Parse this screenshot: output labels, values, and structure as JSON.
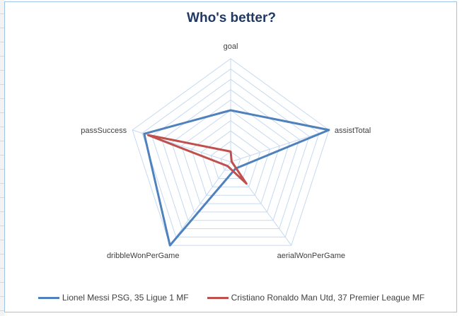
{
  "chart_data": {
    "type": "radar",
    "title": "Who's better?",
    "axes": [
      "goal",
      "assistTotal",
      "aerialWonPerGame",
      "dribbleWonPerGame",
      "passSuccess"
    ],
    "rmax": 10,
    "rings": 10,
    "series": [
      {
        "name": "Lionel Messi PSG, 35 Ligue 1 MF",
        "color": "#4f81bd",
        "values": [
          5.0,
          10.0,
          0.8,
          10.0,
          8.8
        ]
      },
      {
        "name": "Cristiano Ronaldo Man Utd, 37 Premier League MF",
        "color": "#c0504d",
        "values": [
          1.0,
          0.1,
          2.6,
          0.5,
          8.4
        ]
      }
    ]
  }
}
